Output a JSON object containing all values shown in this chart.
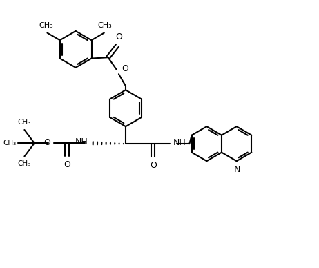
{
  "bg": "#ffffff",
  "lc": "#000000",
  "lw": 1.5,
  "fs": 9,
  "fig_w": 4.62,
  "fig_h": 3.88,
  "dpi": 100,
  "R": 0.55,
  "xlim": [
    0,
    9.5
  ],
  "ylim": [
    0,
    8.0
  ]
}
